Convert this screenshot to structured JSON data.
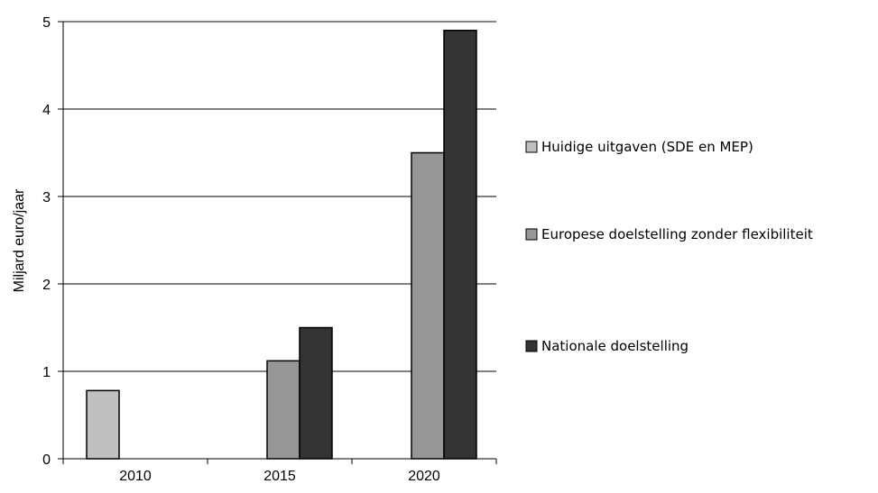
{
  "chart_data": {
    "type": "bar",
    "categories": [
      "2010",
      "2015",
      "2020"
    ],
    "series": [
      {
        "name": "Huidige uitgaven (SDE en MEP)",
        "values": [
          0.78,
          null,
          null
        ],
        "color": "#c0c0c0"
      },
      {
        "name": "Europese doelstelling zonder flexibiliteit",
        "values": [
          null,
          1.12,
          3.5
        ],
        "color": "#969696"
      },
      {
        "name": "Nationale doelstelling",
        "values": [
          null,
          1.5,
          4.9
        ],
        "color": "#333333"
      }
    ],
    "title": "",
    "xlabel": "",
    "ylabel": "Miljard euro/jaar",
    "ylim": [
      0,
      5
    ],
    "yticks": [
      "0",
      "1",
      "2",
      "3",
      "4",
      "5"
    ],
    "grid": true,
    "legend_position": "right"
  }
}
